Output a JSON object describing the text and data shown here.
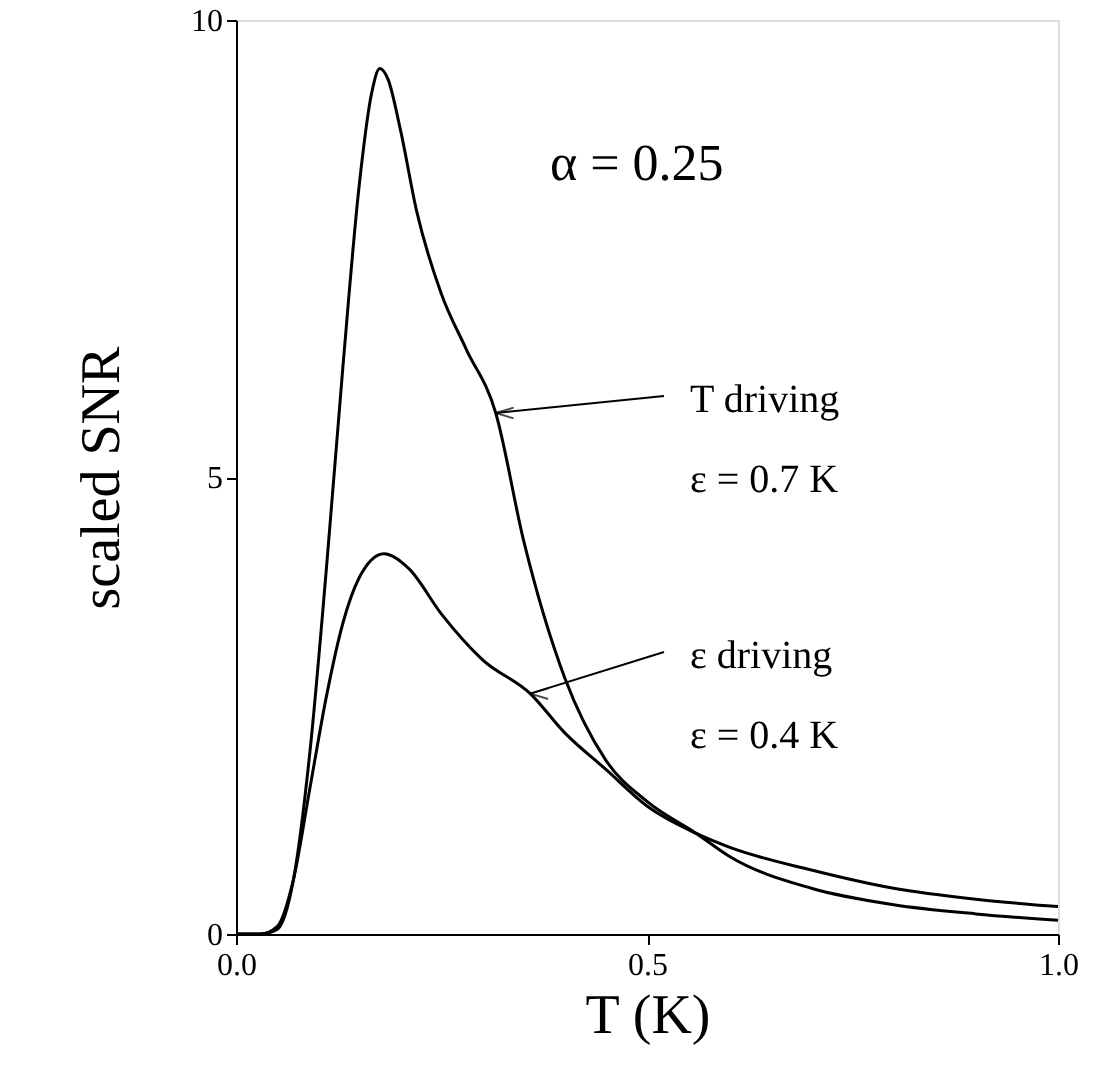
{
  "chart_data": {
    "type": "line",
    "xlabel": "T (K)",
    "ylabel": "scaled SNR",
    "xlim": [
      0,
      1.0
    ],
    "ylim": [
      0,
      10
    ],
    "xticks": [
      {
        "value": 0,
        "label": "0.0"
      },
      {
        "value": 0.5,
        "label": "0.5"
      },
      {
        "value": 1.0,
        "label": "1.0"
      }
    ],
    "yticks": [
      0,
      5,
      10
    ],
    "grid": false,
    "line_style": "solid",
    "annotations": [
      "α = 0.25",
      {
        "text": "T driving",
        "x": 0.316,
        "y": 5.7
      },
      "ε = 0.7 K",
      {
        "text": "ε driving",
        "x": 0.358,
        "y": 2.63
      },
      "ε = 0.4 K"
    ],
    "series": [
      {
        "color": "#000000",
        "x": [
          0,
          0.03,
          0.05,
          0.07,
          0.09,
          0.11,
          0.13,
          0.15,
          0.165,
          0.175,
          0.185,
          0.2,
          0.22,
          0.25,
          0.28,
          0.316,
          0.35,
          0.4,
          0.45,
          0.5,
          0.56,
          0.6,
          0.7,
          0.8,
          0.9,
          1.0
        ],
        "values": [
          0,
          0,
          0.05,
          0.6,
          2.0,
          4.0,
          6.2,
          8.2,
          9.2,
          9.47,
          9.35,
          8.8,
          7.9,
          7.0,
          6.4,
          5.7,
          4.3,
          2.8,
          1.9,
          1.45,
          1.1,
          0.85,
          0.5,
          0.32,
          0.22,
          0.15
        ]
      },
      {
        "color": "#000000",
        "x": [
          0,
          0.03,
          0.05,
          0.07,
          0.09,
          0.11,
          0.13,
          0.15,
          0.18,
          0.21,
          0.25,
          0.3,
          0.358,
          0.4,
          0.45,
          0.5,
          0.56,
          0.6,
          0.7,
          0.8,
          0.9,
          1.0
        ],
        "values": [
          0,
          0,
          0.08,
          0.6,
          1.6,
          2.6,
          3.4,
          3.9,
          4.16,
          4.0,
          3.5,
          3.0,
          2.63,
          2.2,
          1.8,
          1.4,
          1.1,
          0.95,
          0.7,
          0.5,
          0.38,
          0.3
        ]
      }
    ]
  }
}
